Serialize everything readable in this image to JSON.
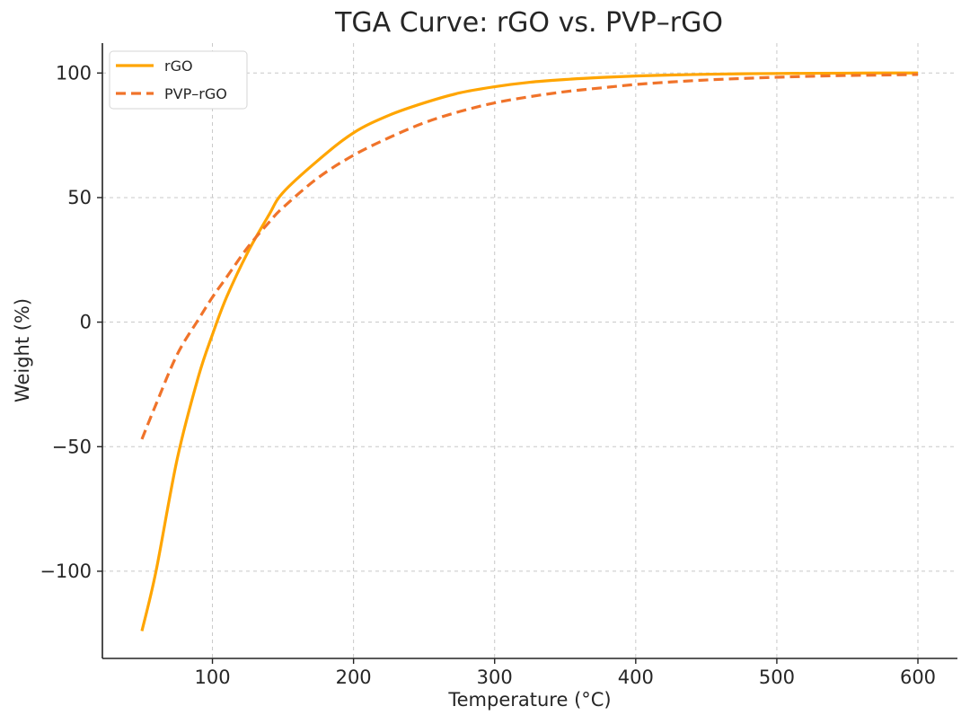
{
  "chart_data": {
    "type": "line",
    "title": "TGA Curve: rGO vs. PVP–rGO",
    "xlabel": "Temperature (°C)",
    "ylabel": "Weight (%)",
    "xlim": [
      22,
      628
    ],
    "ylim": [
      -135,
      112
    ],
    "xticks": [
      100,
      200,
      300,
      400,
      500,
      600
    ],
    "xtick_labels": [
      "100",
      "200",
      "300",
      "400",
      "500",
      "600"
    ],
    "yticks": [
      -100,
      -50,
      0,
      50,
      100
    ],
    "ytick_labels": [
      "−100",
      "−50",
      "0",
      "50",
      "100"
    ],
    "grid": true,
    "legend_position": "top-left",
    "series": [
      {
        "name": "rGO",
        "style": "solid",
        "color": "#FFA500",
        "x": [
          50,
          60,
          75,
          90,
          100,
          110,
          125,
          140,
          150,
          175,
          200,
          225,
          250,
          275,
          300,
          325,
          350,
          375,
          400,
          425,
          450,
          475,
          500,
          525,
          550,
          575,
          600
        ],
        "y": [
          -124,
          -100,
          -55,
          -22,
          -5,
          10,
          28,
          43,
          52,
          65,
          76,
          83,
          88,
          92,
          94.5,
          96.3,
          97.4,
          98.2,
          98.8,
          99.2,
          99.5,
          99.7,
          99.8,
          99.9,
          99.95,
          100,
          100
        ]
      },
      {
        "name": "PVP–rGO",
        "style": "dashed",
        "color": "#F0732A",
        "x": [
          50,
          60,
          75,
          90,
          100,
          110,
          125,
          140,
          150,
          175,
          200,
          225,
          250,
          275,
          300,
          325,
          350,
          375,
          400,
          425,
          450,
          475,
          500,
          525,
          550,
          575,
          600
        ],
        "y": [
          -47,
          -33,
          -13,
          1,
          10,
          18,
          30,
          40,
          46,
          58,
          67,
          74,
          80,
          84.5,
          88,
          90.5,
          92.5,
          94,
          95.4,
          96.4,
          97.2,
          97.8,
          98.3,
          98.7,
          99,
          99.2,
          99.4
        ]
      }
    ]
  }
}
